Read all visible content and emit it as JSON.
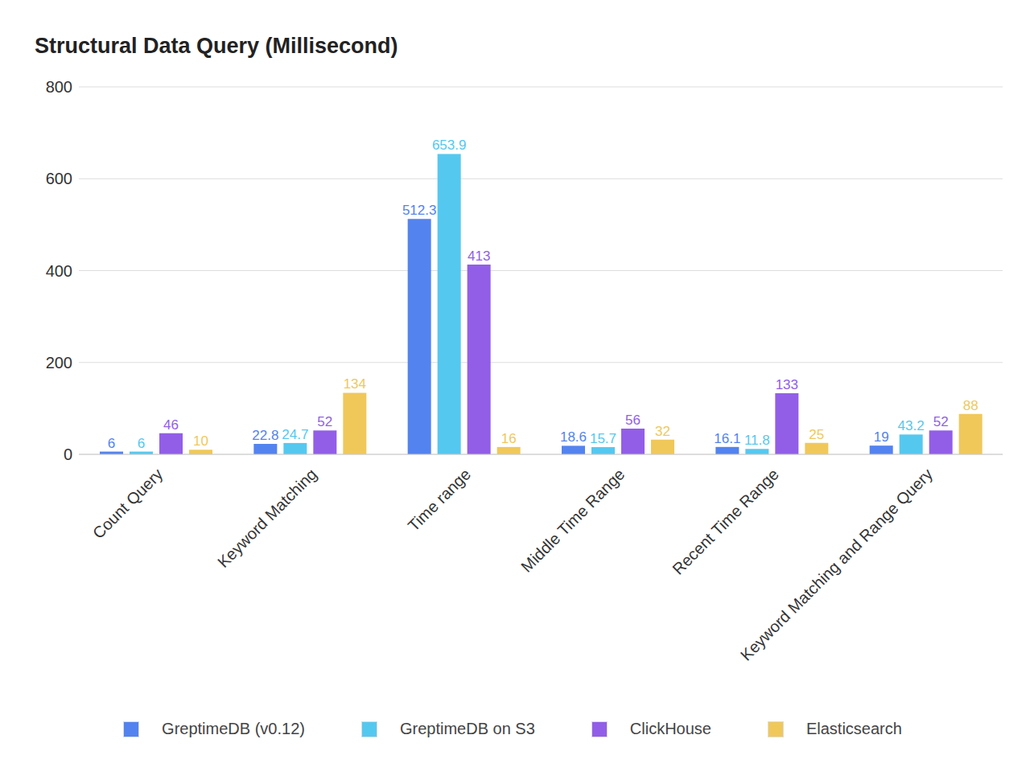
{
  "chart_data": {
    "type": "bar",
    "title": "Structural Data Query (Millisecond)",
    "categories": [
      "Count Query",
      "Keyword Matching",
      "Time range",
      "Middle Time Range",
      "Recent Time Range",
      "Keyword Matching and Range Query"
    ],
    "series": [
      {
        "name": "GreptimeDB (v0.12)",
        "color": "#5383ef",
        "values": [
          6,
          22.8,
          512.3,
          18.6,
          16.1,
          19
        ]
      },
      {
        "name": "GreptimeDB on S3",
        "color": "#55c8f0",
        "values": [
          6,
          24.7,
          653.9,
          15.7,
          11.8,
          43.2
        ]
      },
      {
        "name": "ClickHouse",
        "color": "#925ee8",
        "values": [
          46,
          52,
          413,
          56,
          133,
          52
        ]
      },
      {
        "name": "Elasticsearch",
        "color": "#f0c85a",
        "values": [
          10,
          134,
          16,
          32,
          25,
          88
        ]
      }
    ],
    "ylim": [
      0,
      800
    ],
    "yticks": [
      0,
      200,
      400,
      600,
      800
    ],
    "grid": true,
    "legend": "bottom",
    "data_labels": true
  }
}
